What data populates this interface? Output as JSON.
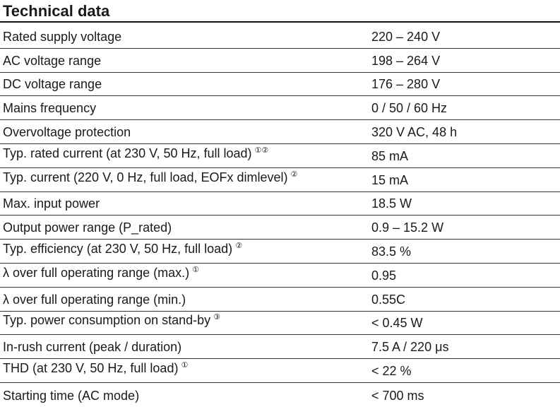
{
  "header": {
    "title": "Technical data"
  },
  "rows": [
    {
      "param": "Rated supply voltage",
      "note": "",
      "value": "220 – 240 V"
    },
    {
      "param": "AC voltage range",
      "note": "",
      "value": "198 – 264 V"
    },
    {
      "param": "DC voltage range",
      "note": "",
      "value": "176 – 280 V"
    },
    {
      "param": "Mains frequency",
      "note": "",
      "value": "0 / 50 / 60 Hz"
    },
    {
      "param": "Overvoltage protection",
      "note": "",
      "value": "320 V AC, 48 h"
    },
    {
      "param": "Typ. rated current (at 230 V, 50 Hz, full load)",
      "note": "①②",
      "value": "85 mA"
    },
    {
      "param": "Typ. current (220 V, 0 Hz, full load, EOFx dimlevel)",
      "note": "②",
      "value": "15 mA"
    },
    {
      "param": "Max. input power",
      "note": "",
      "value": "18.5 W"
    },
    {
      "param": "Output power range (P_rated)",
      "note": "",
      "value": "0.9 – 15.2 W"
    },
    {
      "param": "Typ. efficiency (at 230 V, 50 Hz, full load)",
      "note": "②",
      "value": "83.5 %"
    },
    {
      "param": "λ over full operating range (max.)",
      "note": "①",
      "value": "0.95"
    },
    {
      "param": "λ over full operating range (min.)",
      "note": "",
      "value": "0.55C"
    },
    {
      "param": "Typ. power consumption on stand-by",
      "note": "③",
      "value": "< 0.45 W"
    },
    {
      "param": "In-rush current (peak / duration)",
      "note": "",
      "value": "7.5 A / 220 μs"
    },
    {
      "param": "THD (at 230 V, 50 Hz, full load)",
      "note": "①",
      "value": "< 22 %"
    },
    {
      "param": "Starting time (AC mode)",
      "note": "",
      "value": "< 700 ms"
    }
  ]
}
